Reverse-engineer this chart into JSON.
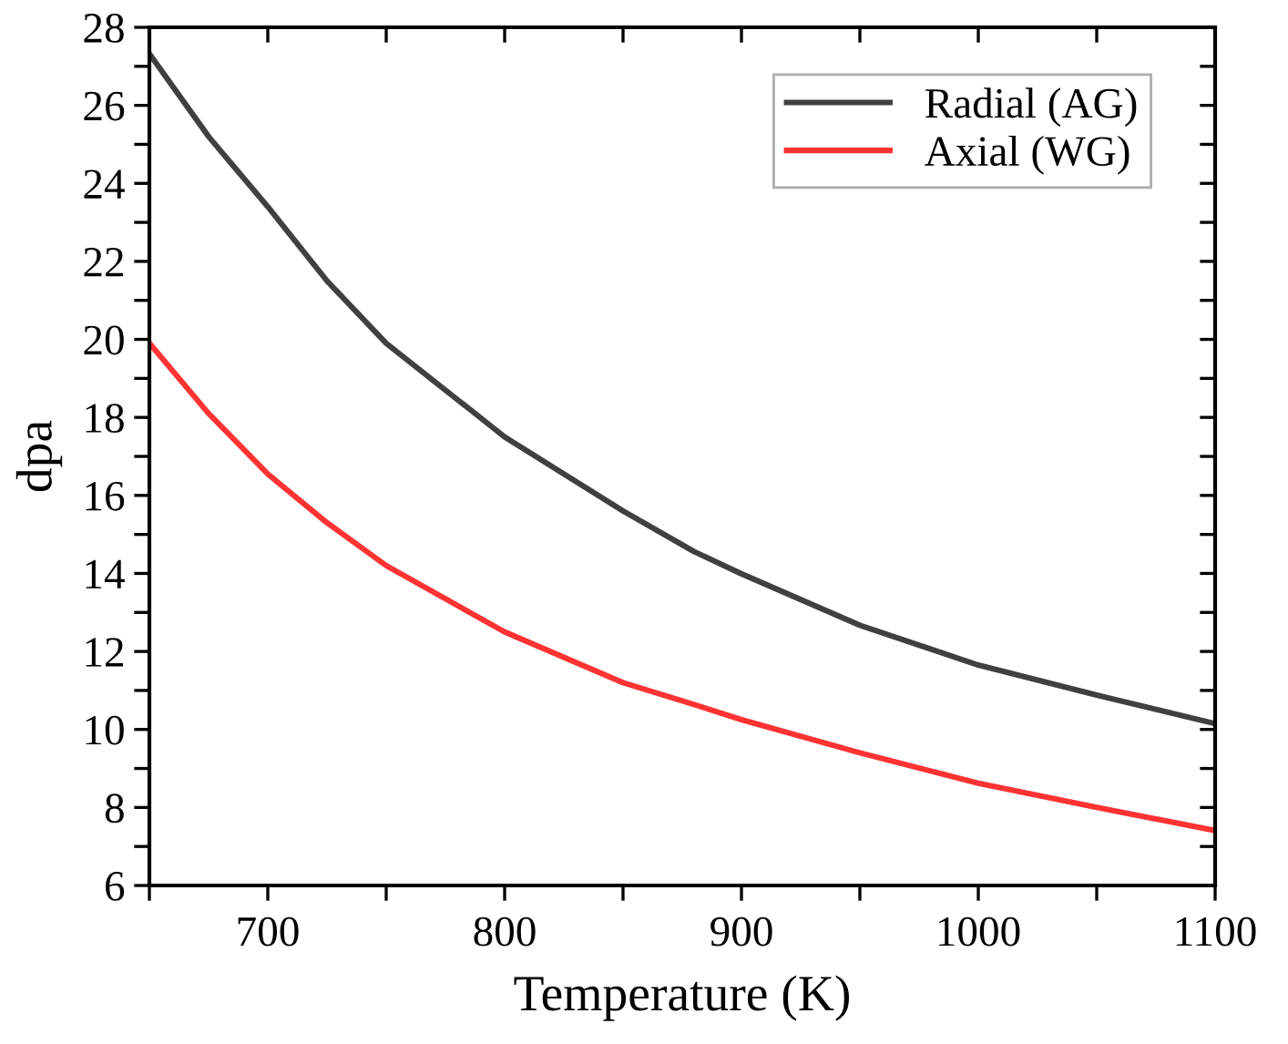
{
  "chart_data": {
    "type": "line",
    "xlabel": "Temperature (K)",
    "ylabel": "dpa",
    "x": [
      650,
      675,
      700,
      725,
      750,
      800,
      850,
      880,
      900,
      950,
      1000,
      1050,
      1100
    ],
    "series": [
      {
        "name": "Radial (AG)",
        "color": "#404040",
        "values": [
          27.32,
          25.2,
          23.4,
          21.5,
          19.9,
          17.5,
          15.6,
          14.56,
          13.99,
          12.67,
          11.65,
          10.88,
          10.15
        ]
      },
      {
        "name": "Axial (WG)",
        "color": "#ff3333",
        "values": [
          19.9,
          18.1,
          16.55,
          15.3,
          14.2,
          12.5,
          11.2,
          10.64,
          10.25,
          9.4,
          8.62,
          8.0,
          7.41
        ]
      }
    ],
    "xlim": [
      650,
      1100
    ],
    "ylim": [
      6,
      28
    ],
    "xticks": [
      {
        "value": 650,
        "label": null
      },
      700,
      {
        "value": 750,
        "label": null
      },
      800,
      {
        "value": 850,
        "label": null
      },
      900,
      {
        "value": 950,
        "label": null
      },
      1000,
      {
        "value": 1050,
        "label": null
      },
      1100
    ],
    "yticks": [
      6,
      {
        "value": 7,
        "label": null
      },
      8,
      {
        "value": 9,
        "label": null
      },
      10,
      {
        "value": 11,
        "label": null
      },
      12,
      {
        "value": 13,
        "label": null
      },
      14,
      {
        "value": 15,
        "label": null
      },
      16,
      {
        "value": 17,
        "label": null
      },
      18,
      {
        "value": 19,
        "label": null
      },
      20,
      {
        "value": 21,
        "label": null
      },
      22,
      {
        "value": 23,
        "label": null
      },
      24,
      {
        "value": 25,
        "label": null
      },
      26,
      {
        "value": 27,
        "label": null
      },
      28
    ],
    "grid": false,
    "legend": "top right",
    "marker": "none",
    "line_style": "solid"
  }
}
